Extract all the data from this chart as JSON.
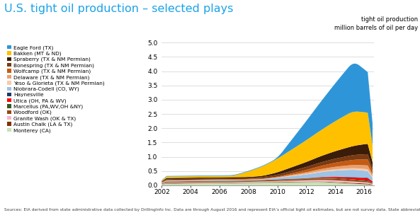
{
  "title": "U.S. tight oil production – selected plays",
  "ylabel_right_line1": "tight oil production",
  "ylabel_right_line2": "million barrels of oil per day",
  "source": "Sources: EIA derived from state administrative data collected by DrillingInfo Inc. Data are through August 2016 and represent EIA’s official tight oil estimates, but are not survey data. State abbreviations indicate primary state(s).",
  "xlim": [
    2002,
    2016.67
  ],
  "ylim": [
    0,
    5.0
  ],
  "yticks": [
    0.0,
    0.5,
    1.0,
    1.5,
    2.0,
    2.5,
    3.0,
    3.5,
    4.0,
    4.5,
    5.0
  ],
  "xticks": [
    2002,
    2004,
    2006,
    2008,
    2010,
    2012,
    2014,
    2016
  ],
  "background_color": "#ffffff",
  "title_color": "#1aa3e8",
  "series": [
    {
      "label": "Monterey (CA)",
      "color": "#c6e0b4"
    },
    {
      "label": "Austin Chalk (LA & TX)",
      "color": "#833200"
    },
    {
      "label": "Granite Wash (OK & TX)",
      "color": "#f4b8c8"
    },
    {
      "label": "Woodford (OK)",
      "color": "#984807"
    },
    {
      "label": "Marcellus (PA,WV,OH &NY)",
      "color": "#375623"
    },
    {
      "label": "Utica (OH, PA & WV)",
      "color": "#ff0000"
    },
    {
      "label": "Haynesville",
      "color": "#1f3864"
    },
    {
      "label": "Niobrara-Codell (CO, WY)",
      "color": "#9dc3e6"
    },
    {
      "label": "Yeso & Glorieta (TX & NM Permian)",
      "color": "#f8cbad"
    },
    {
      "label": "Delaware (TX & NM Permian)",
      "color": "#e8a070"
    },
    {
      "label": "Wolfcamp (TX & NM Permian)",
      "color": "#c55a11"
    },
    {
      "label": "Bonespring (TX & NM Permian)",
      "color": "#7b3a10"
    },
    {
      "label": "Spraberry (TX & NM Permian)",
      "color": "#3b1c08"
    },
    {
      "label": "Bakken (MT & ND)",
      "color": "#ffc000"
    },
    {
      "label": "Eagle Ford (TX)",
      "color": "#2e96d8"
    }
  ]
}
